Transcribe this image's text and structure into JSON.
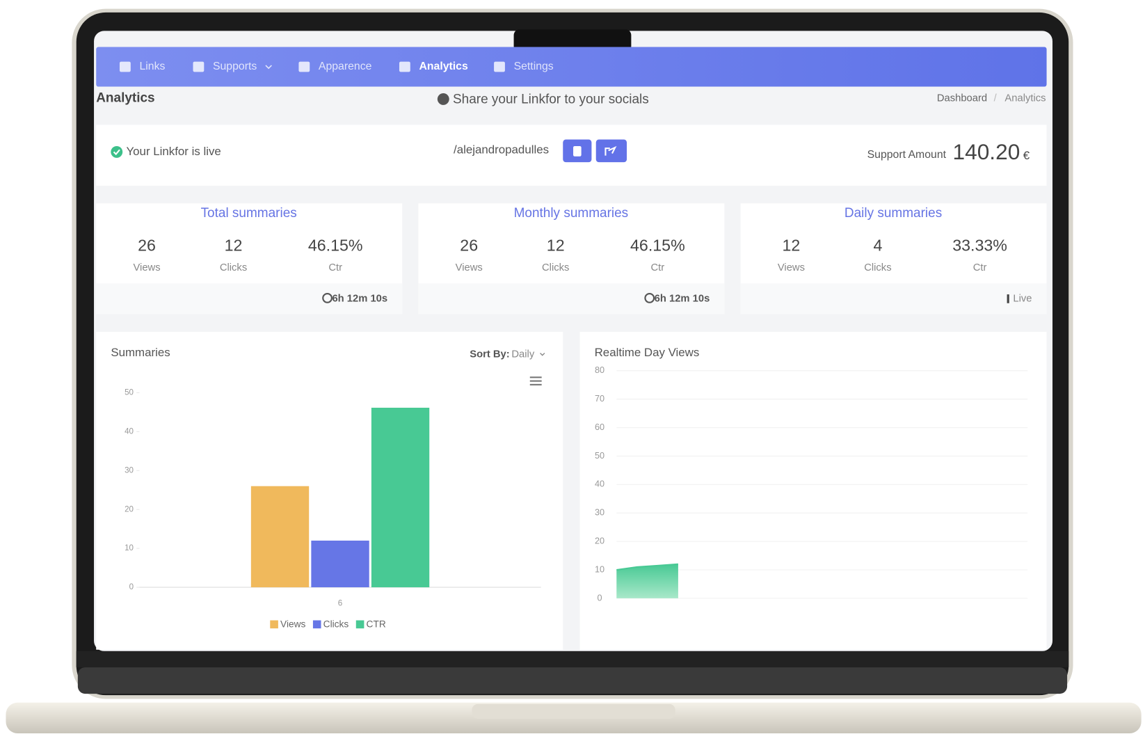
{
  "nav": [
    "Links",
    "Supports",
    "Apparence",
    "Analytics",
    "Settings"
  ],
  "header": {
    "title": "Analytics",
    "share": "Share your Linkfor to your socials",
    "breadcrumb": [
      "Dashboard",
      "/",
      "Analytics"
    ]
  },
  "status": {
    "live": "Your Linkfor is live",
    "handle": "/alejandropadulles",
    "support_label": "Support Amount",
    "support_amount": "140.20",
    "currency": "€"
  },
  "summaries": [
    {
      "title": "Total summaries",
      "stats": [
        {
          "value": "26",
          "label": "Views"
        },
        {
          "value": "12",
          "label": "Clicks"
        },
        {
          "value": "46.15%",
          "label": "Ctr"
        }
      ],
      "footer": "6h 12m 10s"
    },
    {
      "title": "Monthly summaries",
      "stats": [
        {
          "value": "26",
          "label": "Views"
        },
        {
          "value": "12",
          "label": "Clicks"
        },
        {
          "value": "46.15%",
          "label": "Ctr"
        }
      ],
      "footer": "6h 12m 10s"
    },
    {
      "title": "Daily summaries",
      "stats": [
        {
          "value": "12",
          "label": "Views"
        },
        {
          "value": "4",
          "label": "Clicks"
        },
        {
          "value": "33.33%",
          "label": "Ctr"
        }
      ],
      "footer": "Live"
    }
  ],
  "sort": {
    "label": "Sort By:",
    "value": "Daily"
  },
  "chart_data": [
    {
      "type": "bar",
      "title": "Summaries",
      "categories": [
        "6"
      ],
      "series": [
        {
          "name": "Views",
          "color": "#f0b95c",
          "values": [
            26
          ]
        },
        {
          "name": "Clicks",
          "color": "#6676e6",
          "values": [
            12
          ]
        },
        {
          "name": "CTR",
          "color": "#48c994",
          "values": [
            46.15
          ]
        }
      ],
      "ylim": [
        0,
        50
      ],
      "yticks": [
        0,
        10,
        20,
        30,
        40,
        50
      ],
      "grid": false,
      "legend": "bottom"
    },
    {
      "type": "area",
      "title": "Realtime Day Views",
      "x": [
        0,
        1,
        2,
        3
      ],
      "values": [
        10,
        11,
        11.5,
        12
      ],
      "color": "#48c994",
      "xlim": [
        0,
        20
      ],
      "ylim": [
        0,
        80
      ],
      "yticks": [
        0,
        10,
        20,
        30,
        40,
        50,
        60,
        70,
        80
      ],
      "grid": true
    }
  ]
}
